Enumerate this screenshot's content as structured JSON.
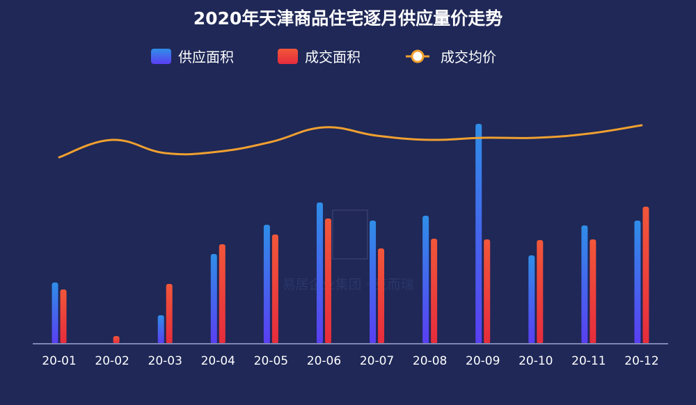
{
  "chart_data": {
    "type": "bar",
    "title": "2020年天津商品住宅逐月供应量价走势",
    "categories": [
      "20-01",
      "20-02",
      "20-03",
      "20-04",
      "20-05",
      "20-06",
      "20-07",
      "20-08",
      "20-09",
      "20-10",
      "20-11",
      "20-12"
    ],
    "series": [
      {
        "name": "供应面积",
        "type": "bar",
        "values": [
          88,
          0,
          41,
          129,
          171,
          203,
          177,
          184,
          316,
          127,
          170,
          177
        ]
      },
      {
        "name": "成交面积",
        "type": "bar",
        "values": [
          78,
          11,
          86,
          143,
          157,
          180,
          137,
          151,
          150,
          149,
          150,
          197
        ]
      },
      {
        "name": "成交均价",
        "type": "line",
        "values": [
          268,
          293,
          274,
          276,
          290,
          311,
          299,
          293,
          296,
          296,
          302,
          314
        ]
      }
    ],
    "legend_position": "top-center",
    "grid": false,
    "xlabel": "",
    "ylabel": "",
    "colors": {
      "background": "#1f2857",
      "supply_top": "#2f8ee8",
      "supply_bottom": "#5a3ef2",
      "deal_top": "#f2573a",
      "deal_bottom": "#e62c3c",
      "line": "#f0a030",
      "axis": "#7f88b3"
    }
  },
  "watermark": {
    "text": "易居企业集团 · 克而瑞"
  }
}
